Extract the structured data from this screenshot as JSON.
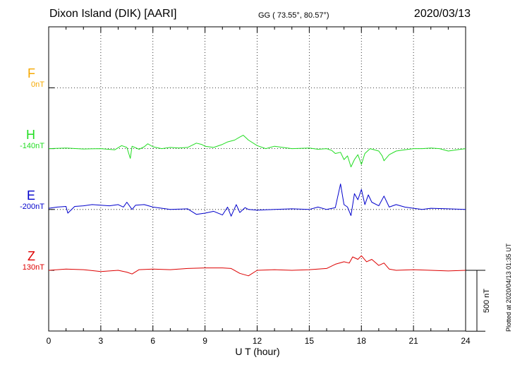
{
  "header": {
    "station": "Dixon Island (DIK)  [AARI]",
    "coords": "GG ( 73.55°,  80.57°)",
    "date": "2020/03/13"
  },
  "footer": {
    "plotted": "Plotted at 2020/04/13 01:35 UT"
  },
  "chart_data": {
    "type": "line",
    "title": "Dixon Island (DIK)  [AARI]",
    "xlabel": "U T (hour)",
    "ylabel": "",
    "xlim": [
      0,
      24
    ],
    "x_ticks": [
      0,
      3,
      6,
      9,
      12,
      15,
      18,
      21,
      24
    ],
    "grid": true,
    "scale_bar_label": "500 nT",
    "scale_bar_nT": 500,
    "nT_per_division": 500,
    "channels": [
      {
        "name": "F",
        "baseline": "0nT",
        "color": "#f5a800",
        "offset_div": 3,
        "x": [],
        "values": []
      },
      {
        "name": "H",
        "baseline": "-140nT",
        "color": "#22dd22",
        "offset_div": 2,
        "x": [
          0,
          1,
          2,
          3,
          3.8,
          4.2,
          4.5,
          4.7,
          4.8,
          5.2,
          5.5,
          5.7,
          6.0,
          6.5,
          7.0,
          7.5,
          8.0,
          8.5,
          8.8,
          9.0,
          9.5,
          10.0,
          10.3,
          10.7,
          11.0,
          11.2,
          11.5,
          12.0,
          12.5,
          13.0,
          14.0,
          15.0,
          15.5,
          16.0,
          16.3,
          16.5,
          16.8,
          17.0,
          17.2,
          17.4,
          17.6,
          17.8,
          18.0,
          18.2,
          18.5,
          19.0,
          19.2,
          19.3,
          19.6,
          20.0,
          20.5,
          21.0,
          21.5,
          22.0,
          22.5,
          23.0,
          23.5,
          24.0
        ],
        "values": [
          0,
          5,
          -3,
          0,
          -10,
          25,
          10,
          -80,
          20,
          -5,
          15,
          40,
          15,
          0,
          10,
          5,
          10,
          45,
          35,
          20,
          10,
          35,
          55,
          70,
          95,
          110,
          70,
          25,
          0,
          20,
          0,
          5,
          -5,
          0,
          -15,
          -40,
          -30,
          -90,
          -60,
          -150,
          -90,
          -50,
          -130,
          -40,
          0,
          -20,
          -60,
          -100,
          -50,
          -20,
          -10,
          0,
          0,
          5,
          0,
          -20,
          -10,
          0
        ]
      },
      {
        "name": "E",
        "baseline": "-200nT",
        "color": "#0000cc",
        "offset_div": 1,
        "x": [
          0,
          0.5,
          1.0,
          1.1,
          1.5,
          2.0,
          2.5,
          3.0,
          3.5,
          4.0,
          4.3,
          4.5,
          4.8,
          5.0,
          5.5,
          6.0,
          7.0,
          8.0,
          8.5,
          9.0,
          9.5,
          10.0,
          10.3,
          10.5,
          10.8,
          11.0,
          11.3,
          11.5,
          12.0,
          13.0,
          14.0,
          15.0,
          15.5,
          16.0,
          16.5,
          16.8,
          17.0,
          17.2,
          17.4,
          17.6,
          17.8,
          18.0,
          18.2,
          18.4,
          18.6,
          19.0,
          19.3,
          19.6,
          20.0,
          20.5,
          21.0,
          21.5,
          22.0,
          23.0,
          24.0
        ],
        "values": [
          10,
          20,
          25,
          -30,
          25,
          30,
          40,
          35,
          30,
          40,
          20,
          60,
          0,
          35,
          40,
          20,
          0,
          5,
          -40,
          -30,
          -15,
          -45,
          20,
          -55,
          40,
          -25,
          15,
          0,
          -5,
          0,
          5,
          0,
          20,
          0,
          15,
          210,
          40,
          20,
          -50,
          130,
          80,
          165,
          40,
          120,
          60,
          30,
          110,
          20,
          40,
          20,
          10,
          0,
          10,
          5,
          0
        ]
      },
      {
        "name": "Z",
        "baseline": "130nT",
        "color": "#dd0000",
        "offset_div": 0,
        "x": [
          0,
          1,
          2,
          3,
          4,
          4.5,
          4.8,
          5.2,
          6,
          7,
          8,
          9,
          10,
          10.5,
          11,
          11.5,
          12,
          13,
          14,
          15,
          16,
          16.5,
          17.0,
          17.3,
          17.5,
          17.8,
          18.0,
          18.3,
          18.6,
          19.0,
          19.3,
          19.6,
          20,
          21,
          22,
          23,
          24
        ],
        "values": [
          0,
          10,
          5,
          -10,
          0,
          -15,
          -30,
          5,
          10,
          5,
          15,
          20,
          20,
          15,
          -25,
          -45,
          0,
          5,
          0,
          5,
          15,
          50,
          70,
          60,
          110,
          90,
          120,
          70,
          90,
          40,
          60,
          10,
          0,
          5,
          0,
          -5,
          0
        ]
      }
    ]
  }
}
